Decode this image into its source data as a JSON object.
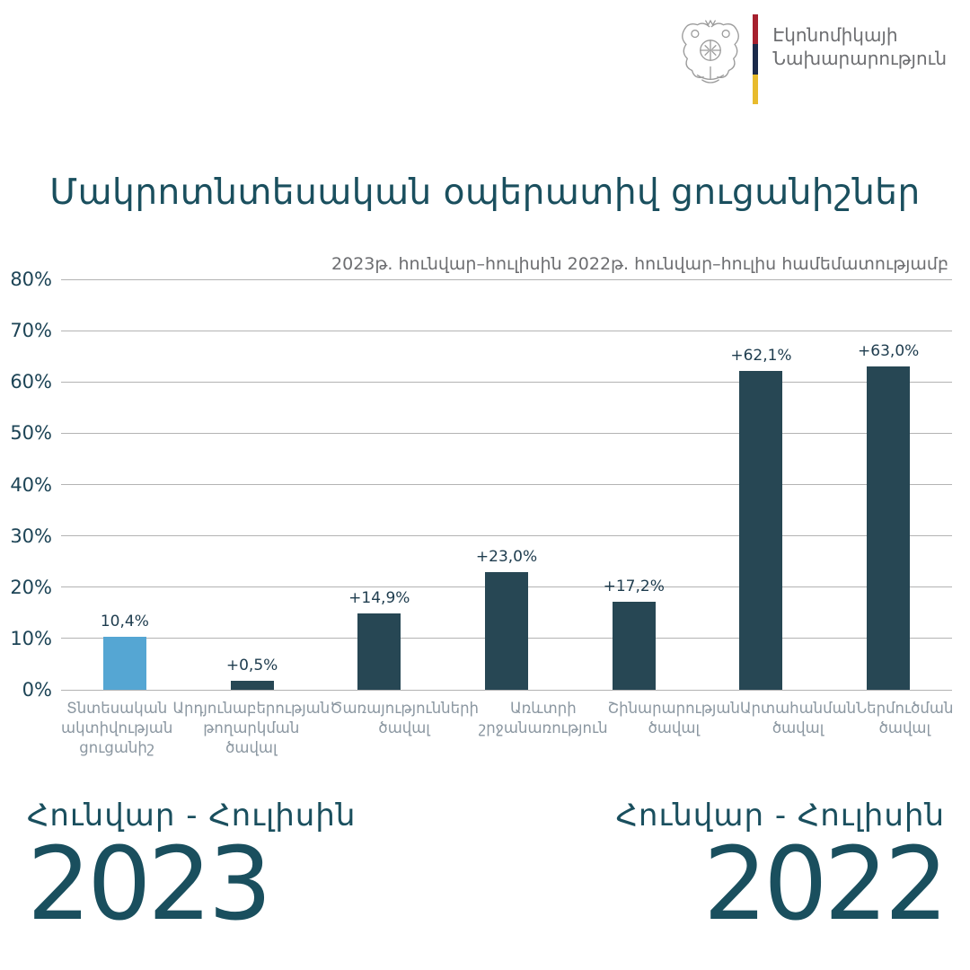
{
  "header": {
    "ministry_line1": "Էկոնոմիկայի",
    "ministry_line2": "Նախարարություն",
    "emblem": "armenia-coat-of-arms",
    "flag_colors": [
      "#a6202e",
      "#1b2a4a",
      "#e8bb2d"
    ]
  },
  "chart_data": {
    "type": "bar",
    "title": "Մակրոտնտեսական օպերատիվ ցուցանիշներ",
    "subtitle": "2023թ. հունվար–հուլիսին 2022թ. հունվար–հուլիս համեմատությամբ",
    "categories": [
      "Տնտեսական\nակտիվության\nցուցանիշ",
      "Արդյունաբերության\nթողարկման\nծավալ",
      "Ծառայությունների\nծավալ",
      "Առևտրի\nշրջանառություն",
      "Շինարարության\nծավալ",
      "Արտահանման\nծավալ",
      "Ներմուծման\nծավալ"
    ],
    "values": [
      10.4,
      0.5,
      14.9,
      23.0,
      17.2,
      62.1,
      63.0
    ],
    "value_labels": [
      "10,4%",
      "+0,5%",
      "+14,9%",
      "+23,0%",
      "+17,2%",
      "+62,1%",
      "+63,0%"
    ],
    "highlight_index": 0,
    "ylim": [
      0,
      80
    ],
    "y_ticks": [
      "0%",
      "10%",
      "20%",
      "30%",
      "40%",
      "50%",
      "60%",
      "70%",
      "80%"
    ],
    "grid": true,
    "legend": "none",
    "xlabel": "",
    "ylabel": ""
  },
  "footer": {
    "left": {
      "period": "Հունվար - Հուլիսին",
      "year": "2023"
    },
    "right": {
      "period": "Հունվար - Հուլիսին",
      "year": "2022"
    }
  },
  "colors": {
    "teal": "#1a4f5e",
    "bar": "#274754",
    "accent_bar": "#55a6d3",
    "grid_line": "#b3b3b3",
    "tick_text": "#1d4456",
    "value_text": "#1e3c4e",
    "xlabel_text": "#8b97a1",
    "muted_text": "#6d6e71"
  }
}
